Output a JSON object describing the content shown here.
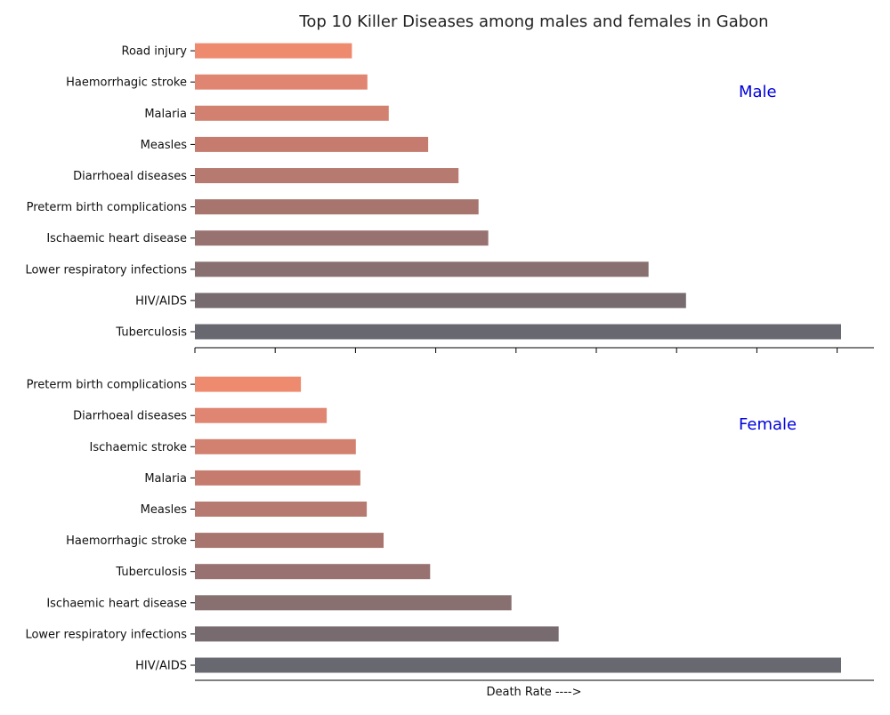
{
  "chart_data": {
    "type": "bar",
    "title": "Top 10 Killer Diseases among males and females in Gabon",
    "xlabel": "Death Rate ---->",
    "orientation": "horizontal",
    "grid": false,
    "palette": [
      "#ee8a6e",
      "#e08571",
      "#d28170",
      "#c57c6f",
      "#b77a70",
      "#a7756e",
      "#987270",
      "#887070",
      "#776b70",
      "#686870"
    ],
    "label_color": "#0000dd",
    "panels": [
      {
        "label": "Male",
        "categories": [
          "Tuberculosis",
          "HIV/AIDS",
          "Lower respiratory infections",
          "Ischaemic heart disease",
          "Preterm birth complications",
          "Diarrhoeal diseases",
          "Measles",
          "Malaria",
          "Haemorrhagic stroke",
          "Road injury"
        ],
        "values": [
          100,
          76,
          70.2,
          45.4,
          43.9,
          40.8,
          36.1,
          30,
          26.7,
          24.3
        ]
      },
      {
        "label": "Female",
        "categories": [
          "HIV/AIDS",
          "Lower respiratory infections",
          "Ischaemic heart disease",
          "Tuberculosis",
          "Haemorrhagic stroke",
          "Measles",
          "Malaria",
          "Ischaemic stroke",
          "Diarrhoeal diseases",
          "Preterm birth complications"
        ],
        "values": [
          100,
          56.3,
          49,
          36.4,
          29.2,
          26.6,
          25.6,
          24.9,
          20.4,
          16.4
        ]
      }
    ]
  }
}
